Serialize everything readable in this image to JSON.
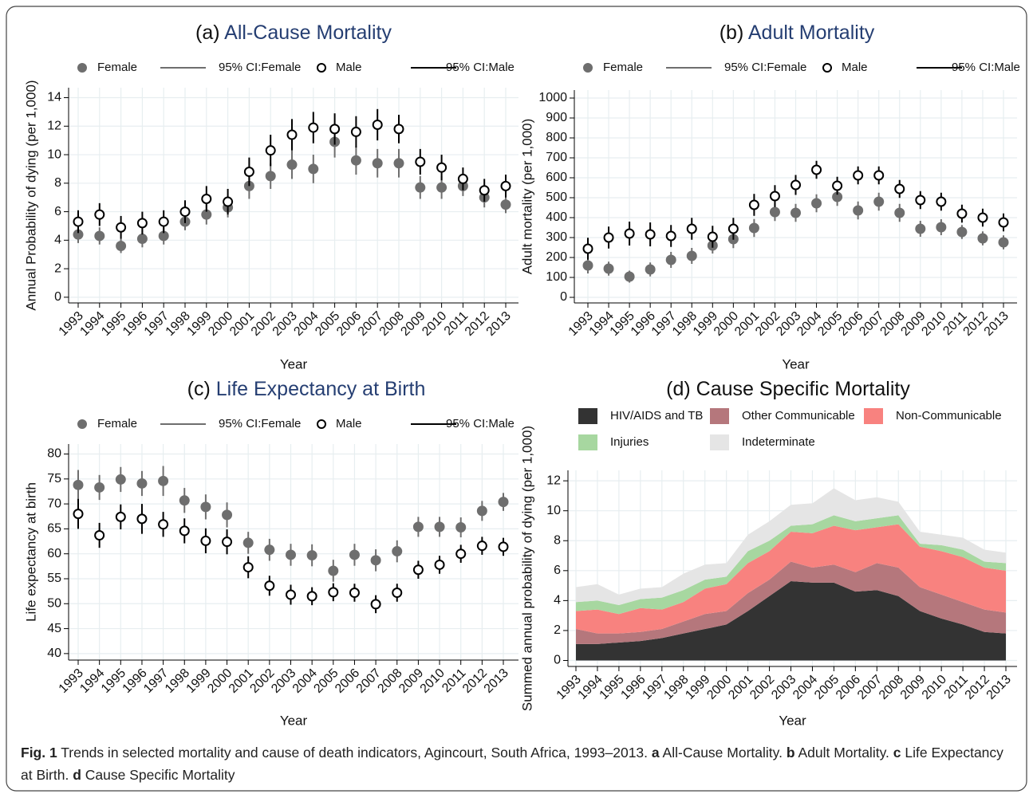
{
  "chart_data": [
    {
      "type": "errorbar",
      "label": "(a)",
      "title": "All-Cause Mortality",
      "title_color": "#253e72",
      "ylabel": "Annual Probability of dying (per 1,000)",
      "xlabel": "Year",
      "categories": [
        "1993",
        "1994",
        "1995",
        "1996",
        "1997",
        "1998",
        "1999",
        "2000",
        "2001",
        "2002",
        "2003",
        "2004",
        "2005",
        "2006",
        "2007",
        "2008",
        "2009",
        "2010",
        "2011",
        "2012",
        "2013"
      ],
      "series": [
        {
          "name": "Female",
          "color": "#6e6e6e",
          "fill": "#6e6e6e",
          "values": [
            4.4,
            4.3,
            3.6,
            4.1,
            4.3,
            5.3,
            5.8,
            6.3,
            7.8,
            8.5,
            9.3,
            9.0,
            10.9,
            9.6,
            9.4,
            9.4,
            7.7,
            7.7,
            7.8,
            7.0,
            6.5
          ]
        },
        {
          "name": "95% CI:Female",
          "color": "#6e6e6e",
          "errors": [
            0.6,
            0.6,
            0.5,
            0.6,
            0.6,
            0.6,
            0.7,
            0.7,
            0.9,
            0.9,
            1.0,
            1.0,
            1.1,
            1.0,
            1.0,
            1.0,
            0.8,
            0.8,
            0.7,
            0.7,
            0.6
          ]
        },
        {
          "name": "Male",
          "color": "#000000",
          "fill": "#ffffff",
          "values": [
            5.3,
            5.8,
            4.9,
            5.2,
            5.3,
            6.0,
            6.9,
            6.7,
            8.8,
            10.3,
            11.4,
            11.9,
            11.8,
            11.6,
            12.1,
            11.8,
            9.5,
            9.1,
            8.3,
            7.5,
            7.8
          ]
        },
        {
          "name": "95% CI:Male",
          "color": "#000000",
          "errors": [
            0.8,
            0.8,
            0.8,
            0.8,
            0.8,
            0.8,
            0.9,
            0.9,
            1.0,
            1.1,
            1.1,
            1.1,
            1.1,
            1.1,
            1.1,
            1.0,
            0.9,
            0.9,
            0.8,
            0.8,
            0.8
          ]
        }
      ],
      "ylim": [
        -0.4,
        14.7
      ],
      "yticks": [
        0,
        2,
        4,
        6,
        8,
        10,
        12,
        14
      ],
      "grid": true
    },
    {
      "type": "errorbar",
      "label": "(b)",
      "title": "Adult Mortality",
      "title_color": "#253e72",
      "ylabel": "Adult mortality (per 1,000)",
      "xlabel": "Year",
      "categories": [
        "1993",
        "1994",
        "1995",
        "1996",
        "1997",
        "1998",
        "1999",
        "2000",
        "2001",
        "2002",
        "2003",
        "2004",
        "2005",
        "2006",
        "2007",
        "2008",
        "2009",
        "2010",
        "2011",
        "2012",
        "2013"
      ],
      "series": [
        {
          "name": "Female",
          "color": "#6e6e6e",
          "fill": "#6e6e6e",
          "values": [
            160,
            144,
            104,
            140,
            188,
            208,
            260,
            292,
            348,
            428,
            424,
            472,
            504,
            436,
            480,
            424,
            344,
            352,
            328,
            296,
            276
          ]
        },
        {
          "name": "95% CI:Female",
          "color": "#6e6e6e",
          "errors": [
            40,
            35,
            30,
            35,
            40,
            40,
            40,
            45,
            45,
            45,
            45,
            45,
            45,
            45,
            45,
            45,
            40,
            40,
            35,
            35,
            35
          ]
        },
        {
          "name": "Male",
          "color": "#000000",
          "fill": "#ffffff",
          "values": [
            244,
            300,
            320,
            316,
            308,
            344,
            304,
            344,
            464,
            508,
            564,
            640,
            560,
            612,
            612,
            544,
            488,
            480,
            420,
            400,
            376
          ]
        },
        {
          "name": "95% CI:Male",
          "color": "#000000",
          "errors": [
            55,
            55,
            60,
            60,
            55,
            55,
            55,
            55,
            55,
            55,
            50,
            45,
            45,
            45,
            45,
            45,
            45,
            45,
            45,
            45,
            45
          ]
        }
      ],
      "ylim": [
        -28,
        1040
      ],
      "yticks": [
        0,
        100,
        200,
        300,
        400,
        500,
        600,
        700,
        800,
        900,
        1000
      ],
      "grid": true
    },
    {
      "type": "errorbar",
      "label": "(c)",
      "title": "Life Expectancy at Birth",
      "title_color": "#253e72",
      "ylabel": "Life expectancy at birth",
      "xlabel": "Year",
      "categories": [
        "1993",
        "1994",
        "1995",
        "1996",
        "1997",
        "1998",
        "1999",
        "2000",
        "2001",
        "2002",
        "2003",
        "2004",
        "2005",
        "2006",
        "2007",
        "2008",
        "2009",
        "2010",
        "2011",
        "2012",
        "2013"
      ],
      "series": [
        {
          "name": "Female",
          "color": "#6e6e6e",
          "fill": "#6e6e6e",
          "values": [
            73.8,
            73.3,
            74.9,
            74.1,
            74.6,
            70.7,
            69.4,
            67.8,
            62.2,
            60.8,
            59.8,
            59.7,
            56.6,
            59.8,
            58.7,
            60.5,
            65.4,
            65.4,
            65.3,
            68.6,
            70.4
          ]
        },
        {
          "name": "95% CI:Female",
          "color": "#6e6e6e",
          "errors": [
            3.0,
            2.5,
            2.5,
            2.5,
            3.0,
            2.5,
            2.5,
            2.5,
            2.2,
            2.2,
            2.2,
            2.2,
            2.2,
            2.2,
            2.2,
            2.2,
            2.0,
            2.0,
            2.0,
            2.0,
            1.8
          ]
        },
        {
          "name": "Male",
          "color": "#000000",
          "fill": "#ffffff",
          "values": [
            68.0,
            63.7,
            67.4,
            67.0,
            65.9,
            64.6,
            62.6,
            62.4,
            57.3,
            53.6,
            51.8,
            51.5,
            52.3,
            52.2,
            49.9,
            52.2,
            56.8,
            57.8,
            60.0,
            61.6,
            61.4
          ]
        },
        {
          "name": "95% CI:Male",
          "color": "#000000",
          "errors": [
            3.0,
            2.5,
            2.5,
            3.0,
            2.5,
            2.5,
            2.5,
            2.5,
            2.2,
            2.0,
            2.0,
            1.8,
            1.8,
            1.8,
            1.8,
            1.8,
            1.8,
            1.8,
            1.8,
            1.8,
            1.8
          ]
        }
      ],
      "ylim": [
        38.7,
        82
      ],
      "yticks": [
        40,
        45,
        50,
        55,
        60,
        65,
        70,
        75,
        80
      ],
      "grid": true
    },
    {
      "type": "area",
      "label": "(d)",
      "title": "Cause Specific Mortality",
      "title_color": "#111111",
      "ylabel": "Summed annual probability of dying (per 1,000)",
      "xlabel": "Year",
      "categories": [
        "1993",
        "1994",
        "1995",
        "1996",
        "1997",
        "1998",
        "1999",
        "2000",
        "2001",
        "2002",
        "2003",
        "2004",
        "2005",
        "2006",
        "2007",
        "2008",
        "2009",
        "2010",
        "2011",
        "2012",
        "2013"
      ],
      "series": [
        {
          "name": "HIV/AIDS and TB",
          "color": "#333333",
          "values": [
            1.1,
            1.1,
            1.2,
            1.3,
            1.5,
            1.8,
            2.1,
            2.4,
            3.3,
            4.3,
            5.3,
            5.2,
            5.2,
            4.6,
            4.7,
            4.3,
            3.3,
            2.8,
            2.4,
            1.9,
            1.8
          ]
        },
        {
          "name": "Other Communicable",
          "color": "#b5777c",
          "values": [
            1.0,
            0.7,
            0.6,
            0.6,
            0.6,
            0.8,
            1.0,
            0.9,
            1.2,
            1.1,
            1.3,
            1.0,
            1.2,
            1.3,
            1.8,
            1.9,
            1.6,
            1.6,
            1.5,
            1.5,
            1.4
          ]
        },
        {
          "name": "Non-Communicable",
          "color": "#f8827f",
          "values": [
            1.2,
            1.6,
            1.3,
            1.6,
            1.3,
            1.3,
            1.7,
            1.8,
            2.0,
            1.9,
            2.0,
            2.3,
            2.6,
            2.8,
            2.4,
            2.9,
            2.7,
            2.9,
            3.0,
            2.8,
            2.8
          ]
        },
        {
          "name": "Injuries",
          "color": "#a7d7a0",
          "values": [
            0.6,
            0.6,
            0.6,
            0.6,
            0.8,
            0.8,
            0.6,
            0.5,
            0.8,
            0.7,
            0.4,
            0.6,
            0.7,
            0.6,
            0.6,
            0.6,
            0.2,
            0.4,
            0.5,
            0.4,
            0.5
          ]
        },
        {
          "name": "Indeterminate",
          "color": "#e5e5e5",
          "values": [
            1.0,
            1.1,
            0.7,
            0.7,
            0.7,
            1.1,
            1.0,
            0.9,
            1.1,
            1.3,
            1.4,
            1.4,
            1.8,
            1.4,
            1.4,
            0.9,
            0.8,
            0.7,
            0.8,
            0.8,
            0.7
          ]
        }
      ],
      "ylim": [
        -0.4,
        12.7
      ],
      "yticks": [
        0,
        2,
        4,
        6,
        8,
        10,
        12
      ],
      "grid": true
    }
  ],
  "caption": [
    {
      "text": "Fig. 1",
      "bold": true
    },
    {
      "text": "Trends in selected mortality and cause of death indicators, Agincourt, South Africa, 1993–2013."
    },
    {
      "text": "a",
      "bold": true
    },
    {
      "text": "All-Cause Mortality."
    },
    {
      "text": "b",
      "bold": true
    },
    {
      "text": "Adult Mortality."
    },
    {
      "text": "c",
      "bold": true
    },
    {
      "text": "Life Expectancy at Birth."
    },
    {
      "text": "d",
      "bold": true
    },
    {
      "text": "Cause Specific Mortality"
    }
  ]
}
